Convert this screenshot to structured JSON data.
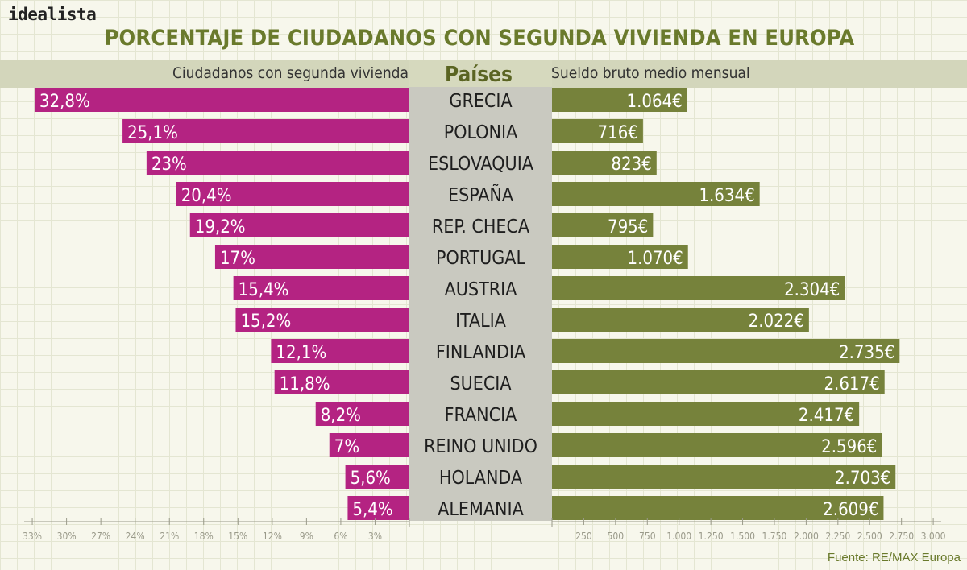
{
  "brand": "idealista",
  "title": "PORCENTAJE DE CIUDADANOS CON SEGUNDA VIVIENDA EN EUROPA",
  "source": "Fuente: RE/MAX Europa",
  "colors": {
    "left_bar": "#b42382",
    "right_bar": "#76823b",
    "center_band": "#c9c9c0",
    "header_band": "#d3d6bb",
    "title_green": "#6a7a2c",
    "axis": "#9a9a8a"
  },
  "chart_data": {
    "type": "bar",
    "title": "PORCENTAJE DE CIUDADANOS CON SEGUNDA VIVIENDA EN EUROPA",
    "category_header": "Países",
    "categories": [
      "GRECIA",
      "POLONIA",
      "ESLOVAQUIA",
      "ESPAÑA",
      "REP. CHECA",
      "PORTUGAL",
      "AUSTRIA",
      "ITALIA",
      "FINLANDIA",
      "SUECIA",
      "FRANCIA",
      "REINO UNIDO",
      "HOLANDA",
      "ALEMANIA"
    ],
    "series": [
      {
        "name": "Ciudadanos con segunda vivienda",
        "side": "left",
        "values": [
          32.8,
          25.1,
          23,
          20.4,
          19.2,
          17,
          15.4,
          15.2,
          12.1,
          11.8,
          8.2,
          7,
          5.6,
          5.4
        ],
        "labels": [
          "32,8%",
          "25,1%",
          "23%",
          "20,4%",
          "19,2%",
          "17%",
          "15,4%",
          "15,2%",
          "12,1%",
          "11,8%",
          "8,2%",
          "7%",
          "5,6%",
          "5,4%"
        ],
        "range": [
          0,
          33
        ],
        "ticks": [
          33,
          30,
          27,
          24,
          21,
          18,
          15,
          12,
          9,
          6,
          3
        ],
        "tick_labels": [
          "33%",
          "30%",
          "27%",
          "24%",
          "21%",
          "18%",
          "15%",
          "12%",
          "9%",
          "6%",
          "3%"
        ]
      },
      {
        "name": "Sueldo bruto medio mensual",
        "side": "right",
        "values": [
          1064,
          716,
          823,
          1634,
          795,
          1070,
          2304,
          2022,
          2735,
          2617,
          2417,
          2596,
          2703,
          2609
        ],
        "labels": [
          "1.064€",
          "716€",
          "823€",
          "1.634€",
          "795€",
          "1.070€",
          "2.304€",
          "2.022€",
          "2.735€",
          "2.617€",
          "2.417€",
          "2.596€",
          "2.703€",
          "2.609€"
        ],
        "range": [
          0,
          3000
        ],
        "ticks": [
          250,
          500,
          750,
          1000,
          1250,
          1500,
          1750,
          2000,
          2250,
          2500,
          2750,
          3000
        ],
        "tick_labels": [
          "250",
          "500",
          "750",
          "1.000",
          "1.250",
          "1.500",
          "1.750",
          "2.000",
          "2.250",
          "2.500",
          "2.750",
          "3.000"
        ]
      }
    ]
  }
}
